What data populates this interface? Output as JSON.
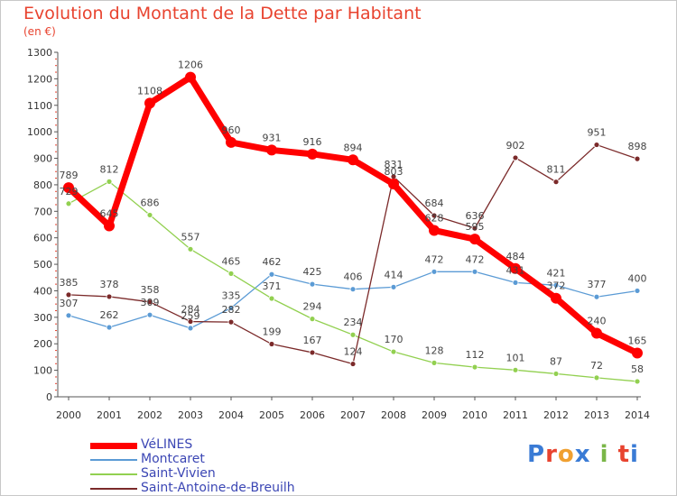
{
  "chart_data": {
    "type": "line",
    "title": "Evolution du Montant de la Dette par Habitant",
    "subtitle": "(en €)",
    "x": [
      "2000",
      "2001",
      "2002",
      "2003",
      "2004",
      "2005",
      "2006",
      "2007",
      "2008",
      "2009",
      "2010",
      "2011",
      "2012",
      "2013",
      "2014"
    ],
    "ylim": [
      0,
      1300
    ],
    "yticks": [
      0,
      100,
      200,
      300,
      400,
      500,
      600,
      700,
      800,
      900,
      1000,
      1100,
      1200,
      1300
    ],
    "grid": false,
    "legend_position": "bottom-left",
    "series": [
      {
        "name": "VéLINES",
        "color": "#ff0000",
        "values": [
          789,
          645,
          1108,
          1206,
          960,
          931,
          916,
          894,
          803,
          628,
          595,
          484,
          372,
          240,
          165
        ]
      },
      {
        "name": "Montcaret",
        "color": "#5b9bd5",
        "values": [
          307,
          262,
          309,
          259,
          335,
          462,
          425,
          406,
          414,
          472,
          472,
          431,
          421,
          377,
          400
        ]
      },
      {
        "name": "Saint-Vivien",
        "color": "#92d050",
        "values": [
          729,
          812,
          686,
          557,
          465,
          371,
          294,
          234,
          170,
          128,
          112,
          101,
          87,
          72,
          58
        ]
      },
      {
        "name": "Saint-Antoine-de-Breuilh",
        "color": "#7b2a2a",
        "values": [
          385,
          378,
          358,
          284,
          282,
          199,
          167,
          124,
          831,
          684,
          636,
          902,
          811,
          951,
          898
        ]
      }
    ]
  },
  "legend": [
    {
      "label": "VéLINES",
      "color": "#ff0000"
    },
    {
      "label": "Montcaret",
      "color": "#5b9bd5"
    },
    {
      "label": "Saint-Vivien",
      "color": "#92d050"
    },
    {
      "label": "Saint-Antoine-de-Breuilh",
      "color": "#7b2a2a"
    }
  ],
  "logo": {
    "text": "Prox i ti",
    "colors": [
      "#3a7bd5",
      "#e8432f",
      "#f0a030",
      "#3a7bd5",
      "#7ab648",
      "#e8432f",
      "#3a7bd5",
      "#7ab648"
    ]
  }
}
